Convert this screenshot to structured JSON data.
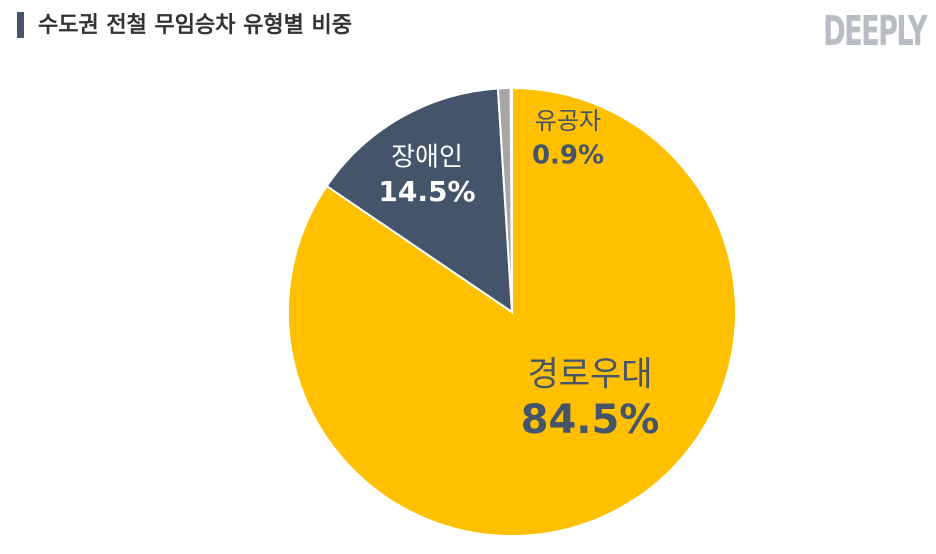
{
  "chart_data": {
    "type": "pie",
    "title": "수도권 전철 무임승차 유형별 비중",
    "brand": "DEEPLY",
    "categories": [
      "경로우대",
      "장애인",
      "유공자"
    ],
    "values": [
      84.5,
      14.5,
      0.9
    ],
    "value_labels": [
      "84.5%",
      "14.5%",
      "0.9%"
    ],
    "colors": [
      "#FFC000",
      "#44546A",
      "#A6A6A6"
    ]
  }
}
